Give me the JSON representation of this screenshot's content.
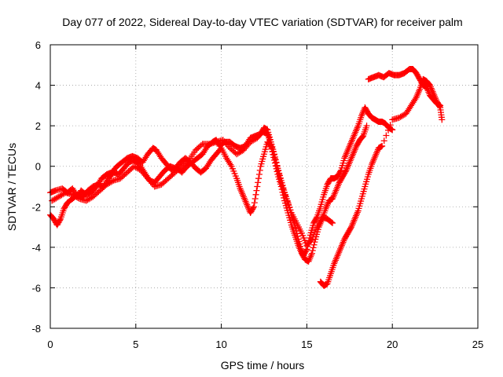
{
  "chart_data": {
    "type": "scatter",
    "title": "Day 077 of 2022, Sidereal Day-to-day VTEC variation (SDTVAR) for receiver palm",
    "xlabel": "GPS time / hours",
    "ylabel": "SDTVAR / TECUs",
    "xlim": [
      0,
      25
    ],
    "ylim": [
      -8,
      6
    ],
    "xticks": [
      "0",
      "5",
      "10",
      "15",
      "20",
      "25"
    ],
    "yticks": [
      "-8",
      "-6",
      "-4",
      "-2",
      "0",
      "2",
      "4",
      "6"
    ],
    "grid": true,
    "marker": "+",
    "color": "#ff0000",
    "series": [
      {
        "points": [
          [
            0.0,
            -1.3
          ],
          [
            0.3,
            -1.2
          ],
          [
            0.7,
            -1.1
          ],
          [
            1.0,
            -1.3
          ],
          [
            1.3,
            -1.1
          ],
          [
            1.6,
            -1.5
          ],
          [
            1.8,
            -1.2
          ],
          [
            2.1,
            -1.4
          ],
          [
            2.4,
            -1.3
          ],
          [
            2.7,
            -1.0
          ],
          [
            3.0,
            -0.6
          ],
          [
            3.3,
            -0.4
          ],
          [
            3.6,
            -0.3
          ],
          [
            3.9,
            0.0
          ],
          [
            4.2,
            0.2
          ],
          [
            4.5,
            0.4
          ],
          [
            4.8,
            0.5
          ],
          [
            5.1,
            0.4
          ],
          [
            5.4,
            0.2
          ],
          [
            5.7,
            0.6
          ],
          [
            6.0,
            0.9
          ],
          [
            6.2,
            0.8
          ],
          [
            6.5,
            0.4
          ],
          [
            6.8,
            0.1
          ],
          [
            7.1,
            -0.2
          ],
          [
            7.4,
            -0.1
          ],
          [
            7.7,
            -0.3
          ],
          [
            8.0,
            0.0
          ],
          [
            8.3,
            0.2
          ],
          [
            8.6,
            0.4
          ],
          [
            8.9,
            0.6
          ],
          [
            9.2,
            1.0
          ],
          [
            9.5,
            1.2
          ],
          [
            9.7,
            1.3
          ],
          [
            9.9,
            1.0
          ],
          [
            10.2,
            1.2
          ],
          [
            10.5,
            1.2
          ],
          [
            10.8,
            1.0
          ],
          [
            11.1,
            0.9
          ],
          [
            11.4,
            1.0
          ],
          [
            11.7,
            1.4
          ],
          [
            12.0,
            1.5
          ],
          [
            12.3,
            1.6
          ],
          [
            12.5,
            1.9
          ],
          [
            12.7,
            1.8
          ],
          [
            12.9,
            1.2
          ],
          [
            13.1,
            0.6
          ],
          [
            13.3,
            -0.1
          ],
          [
            13.5,
            -0.7
          ],
          [
            13.7,
            -1.3
          ],
          [
            13.9,
            -1.8
          ],
          [
            14.1,
            -2.4
          ],
          [
            14.3,
            -2.9
          ],
          [
            14.5,
            -3.6
          ],
          [
            14.7,
            -4.2
          ],
          [
            14.8,
            -4.4
          ],
          [
            15.0,
            -4.1
          ],
          [
            15.2,
            -3.4
          ],
          [
            15.4,
            -2.8
          ],
          [
            15.6,
            -2.5
          ],
          [
            15.8,
            -2.0
          ],
          [
            16.0,
            -1.4
          ],
          [
            16.2,
            -0.9
          ],
          [
            16.4,
            -0.6
          ],
          [
            16.6,
            -0.6
          ],
          [
            16.8,
            -0.5
          ],
          [
            17.0,
            -0.2
          ],
          [
            17.2,
            0.4
          ],
          [
            17.4,
            0.8
          ],
          [
            17.6,
            1.2
          ],
          [
            17.8,
            1.6
          ],
          [
            18.0,
            2.0
          ],
          [
            18.2,
            2.5
          ],
          [
            18.4,
            2.9
          ],
          [
            18.6,
            2.6
          ],
          [
            18.8,
            2.4
          ],
          [
            19.0,
            2.3
          ],
          [
            19.2,
            2.2
          ],
          [
            19.4,
            2.2
          ],
          [
            19.6,
            2.1
          ],
          [
            19.8,
            1.9
          ],
          [
            20.0,
            1.8
          ]
        ]
      },
      {
        "points": [
          [
            0.0,
            -2.4
          ],
          [
            0.2,
            -2.6
          ],
          [
            0.4,
            -2.9
          ],
          [
            0.6,
            -2.6
          ],
          [
            0.8,
            -2.1
          ],
          [
            1.0,
            -1.8
          ],
          [
            1.3,
            -1.6
          ],
          [
            1.6,
            -1.4
          ],
          [
            1.9,
            -1.5
          ],
          [
            2.2,
            -1.2
          ],
          [
            2.5,
            -1.0
          ],
          [
            2.8,
            -0.9
          ],
          [
            3.1,
            -1.0
          ],
          [
            3.4,
            -0.6
          ],
          [
            3.7,
            -0.3
          ],
          [
            4.0,
            -0.4
          ],
          [
            4.3,
            -0.1
          ],
          [
            4.6,
            0.2
          ],
          [
            4.9,
            0.3
          ],
          [
            5.2,
            0.1
          ],
          [
            5.5,
            -0.3
          ],
          [
            5.8,
            -0.7
          ],
          [
            6.1,
            -0.8
          ],
          [
            6.4,
            -0.5
          ],
          [
            6.7,
            -0.2
          ],
          [
            7.0,
            0.0
          ],
          [
            7.3,
            -0.1
          ],
          [
            7.6,
            0.2
          ],
          [
            7.9,
            0.4
          ],
          [
            8.2,
            0.2
          ],
          [
            8.5,
            -0.1
          ],
          [
            8.8,
            -0.3
          ],
          [
            9.1,
            -0.1
          ],
          [
            9.4,
            0.3
          ],
          [
            9.7,
            0.6
          ],
          [
            10.0,
            0.9
          ],
          [
            10.3,
            0.4
          ],
          [
            10.6,
            0.0
          ],
          [
            10.9,
            -0.6
          ],
          [
            11.1,
            -1.1
          ],
          [
            11.3,
            -1.5
          ],
          [
            11.5,
            -1.9
          ],
          [
            11.7,
            -2.3
          ],
          [
            11.9,
            -2.0
          ],
          [
            12.1,
            -1.0
          ],
          [
            12.3,
            0.0
          ],
          [
            12.5,
            0.6
          ],
          [
            12.7,
            1.2
          ],
          [
            12.9,
            1.0
          ],
          [
            13.1,
            0.3
          ],
          [
            13.3,
            -0.4
          ],
          [
            13.5,
            -1.0
          ],
          [
            13.7,
            -1.7
          ],
          [
            13.9,
            -2.3
          ],
          [
            14.1,
            -2.9
          ],
          [
            14.3,
            -3.4
          ],
          [
            14.5,
            -3.9
          ],
          [
            14.7,
            -4.3
          ],
          [
            14.9,
            -4.6
          ],
          [
            15.1,
            -4.7
          ],
          [
            15.3,
            -4.3
          ],
          [
            15.5,
            -3.6
          ],
          [
            15.7,
            -3.0
          ],
          [
            15.9,
            -2.6
          ],
          [
            16.1,
            -2.1
          ],
          [
            16.3,
            -1.7
          ],
          [
            16.5,
            -1.6
          ],
          [
            16.7,
            -1.2
          ],
          [
            16.9,
            -0.8
          ],
          [
            17.1,
            -0.5
          ],
          [
            17.3,
            -0.2
          ],
          [
            17.5,
            0.2
          ],
          [
            17.7,
            0.6
          ],
          [
            17.9,
            1.0
          ],
          [
            18.1,
            1.3
          ],
          [
            18.3,
            1.5
          ],
          [
            18.5,
            2.0
          ],
          [
            18.6,
            4.3
          ],
          [
            18.9,
            4.4
          ],
          [
            19.2,
            4.5
          ],
          [
            19.5,
            4.4
          ],
          [
            19.8,
            4.6
          ],
          [
            20.1,
            4.5
          ],
          [
            20.4,
            4.5
          ],
          [
            20.7,
            4.6
          ],
          [
            21.0,
            4.8
          ],
          [
            21.2,
            4.8
          ],
          [
            21.4,
            4.6
          ],
          [
            21.6,
            4.3
          ],
          [
            21.8,
            4.0
          ],
          [
            22.0,
            3.9
          ],
          [
            22.2,
            3.5
          ],
          [
            22.4,
            3.3
          ],
          [
            22.6,
            3.1
          ],
          [
            22.8,
            3.0
          ]
        ]
      },
      {
        "points": [
          [
            0.1,
            -1.7
          ],
          [
            0.5,
            -1.5
          ],
          [
            0.9,
            -1.3
          ],
          [
            1.3,
            -1.4
          ],
          [
            1.7,
            -1.6
          ],
          [
            2.1,
            -1.7
          ],
          [
            2.5,
            -1.5
          ],
          [
            2.9,
            -1.2
          ],
          [
            3.3,
            -0.9
          ],
          [
            3.7,
            -0.7
          ],
          [
            4.1,
            -0.6
          ],
          [
            4.5,
            -0.3
          ],
          [
            4.9,
            0.0
          ],
          [
            5.3,
            -0.2
          ],
          [
            5.7,
            -0.6
          ],
          [
            6.1,
            -1.0
          ],
          [
            6.5,
            -0.9
          ],
          [
            6.9,
            -0.6
          ],
          [
            7.3,
            -0.3
          ],
          [
            7.7,
            0.0
          ],
          [
            8.1,
            0.3
          ],
          [
            8.5,
            0.8
          ],
          [
            8.9,
            1.1
          ],
          [
            9.3,
            1.1
          ],
          [
            9.7,
            1.2
          ],
          [
            10.1,
            1.3
          ],
          [
            10.5,
            0.9
          ],
          [
            10.9,
            0.6
          ],
          [
            11.3,
            0.8
          ],
          [
            11.7,
            1.2
          ],
          [
            12.1,
            1.4
          ],
          [
            12.4,
            1.7
          ],
          [
            12.7,
            1.6
          ],
          [
            12.9,
            1.1
          ],
          [
            13.2,
            0.2
          ],
          [
            13.5,
            -0.8
          ],
          [
            13.8,
            -1.6
          ],
          [
            14.1,
            -2.3
          ],
          [
            14.4,
            -2.8
          ],
          [
            14.7,
            -3.3
          ],
          [
            15.0,
            -3.9
          ],
          [
            15.3,
            -3.6
          ],
          [
            15.6,
            -3.0
          ],
          [
            15.9,
            -2.5
          ],
          [
            16.2,
            -2.6
          ],
          [
            16.5,
            -2.8
          ],
          [
            15.8,
            -5.7
          ],
          [
            16.0,
            -5.9
          ],
          [
            16.2,
            -5.8
          ],
          [
            16.4,
            -5.3
          ],
          [
            16.6,
            -4.8
          ],
          [
            16.8,
            -4.4
          ],
          [
            17.0,
            -4.0
          ],
          [
            17.2,
            -3.6
          ],
          [
            17.4,
            -3.3
          ],
          [
            17.6,
            -3.0
          ],
          [
            17.8,
            -2.6
          ],
          [
            18.0,
            -2.2
          ],
          [
            18.2,
            -1.6
          ],
          [
            18.4,
            -1.0
          ],
          [
            18.6,
            -0.4
          ],
          [
            18.8,
            0.1
          ],
          [
            19.0,
            0.5
          ],
          [
            19.2,
            0.9
          ],
          [
            19.4,
            1.0
          ],
          [
            20.0,
            2.3
          ],
          [
            20.4,
            2.4
          ],
          [
            20.8,
            2.6
          ],
          [
            21.1,
            3.0
          ],
          [
            21.4,
            3.4
          ],
          [
            21.6,
            3.8
          ],
          [
            21.8,
            4.3
          ],
          [
            22.0,
            4.2
          ],
          [
            22.2,
            4.0
          ],
          [
            22.4,
            3.6
          ],
          [
            22.6,
            3.2
          ],
          [
            22.8,
            2.9
          ],
          [
            22.9,
            2.3
          ]
        ]
      }
    ]
  }
}
